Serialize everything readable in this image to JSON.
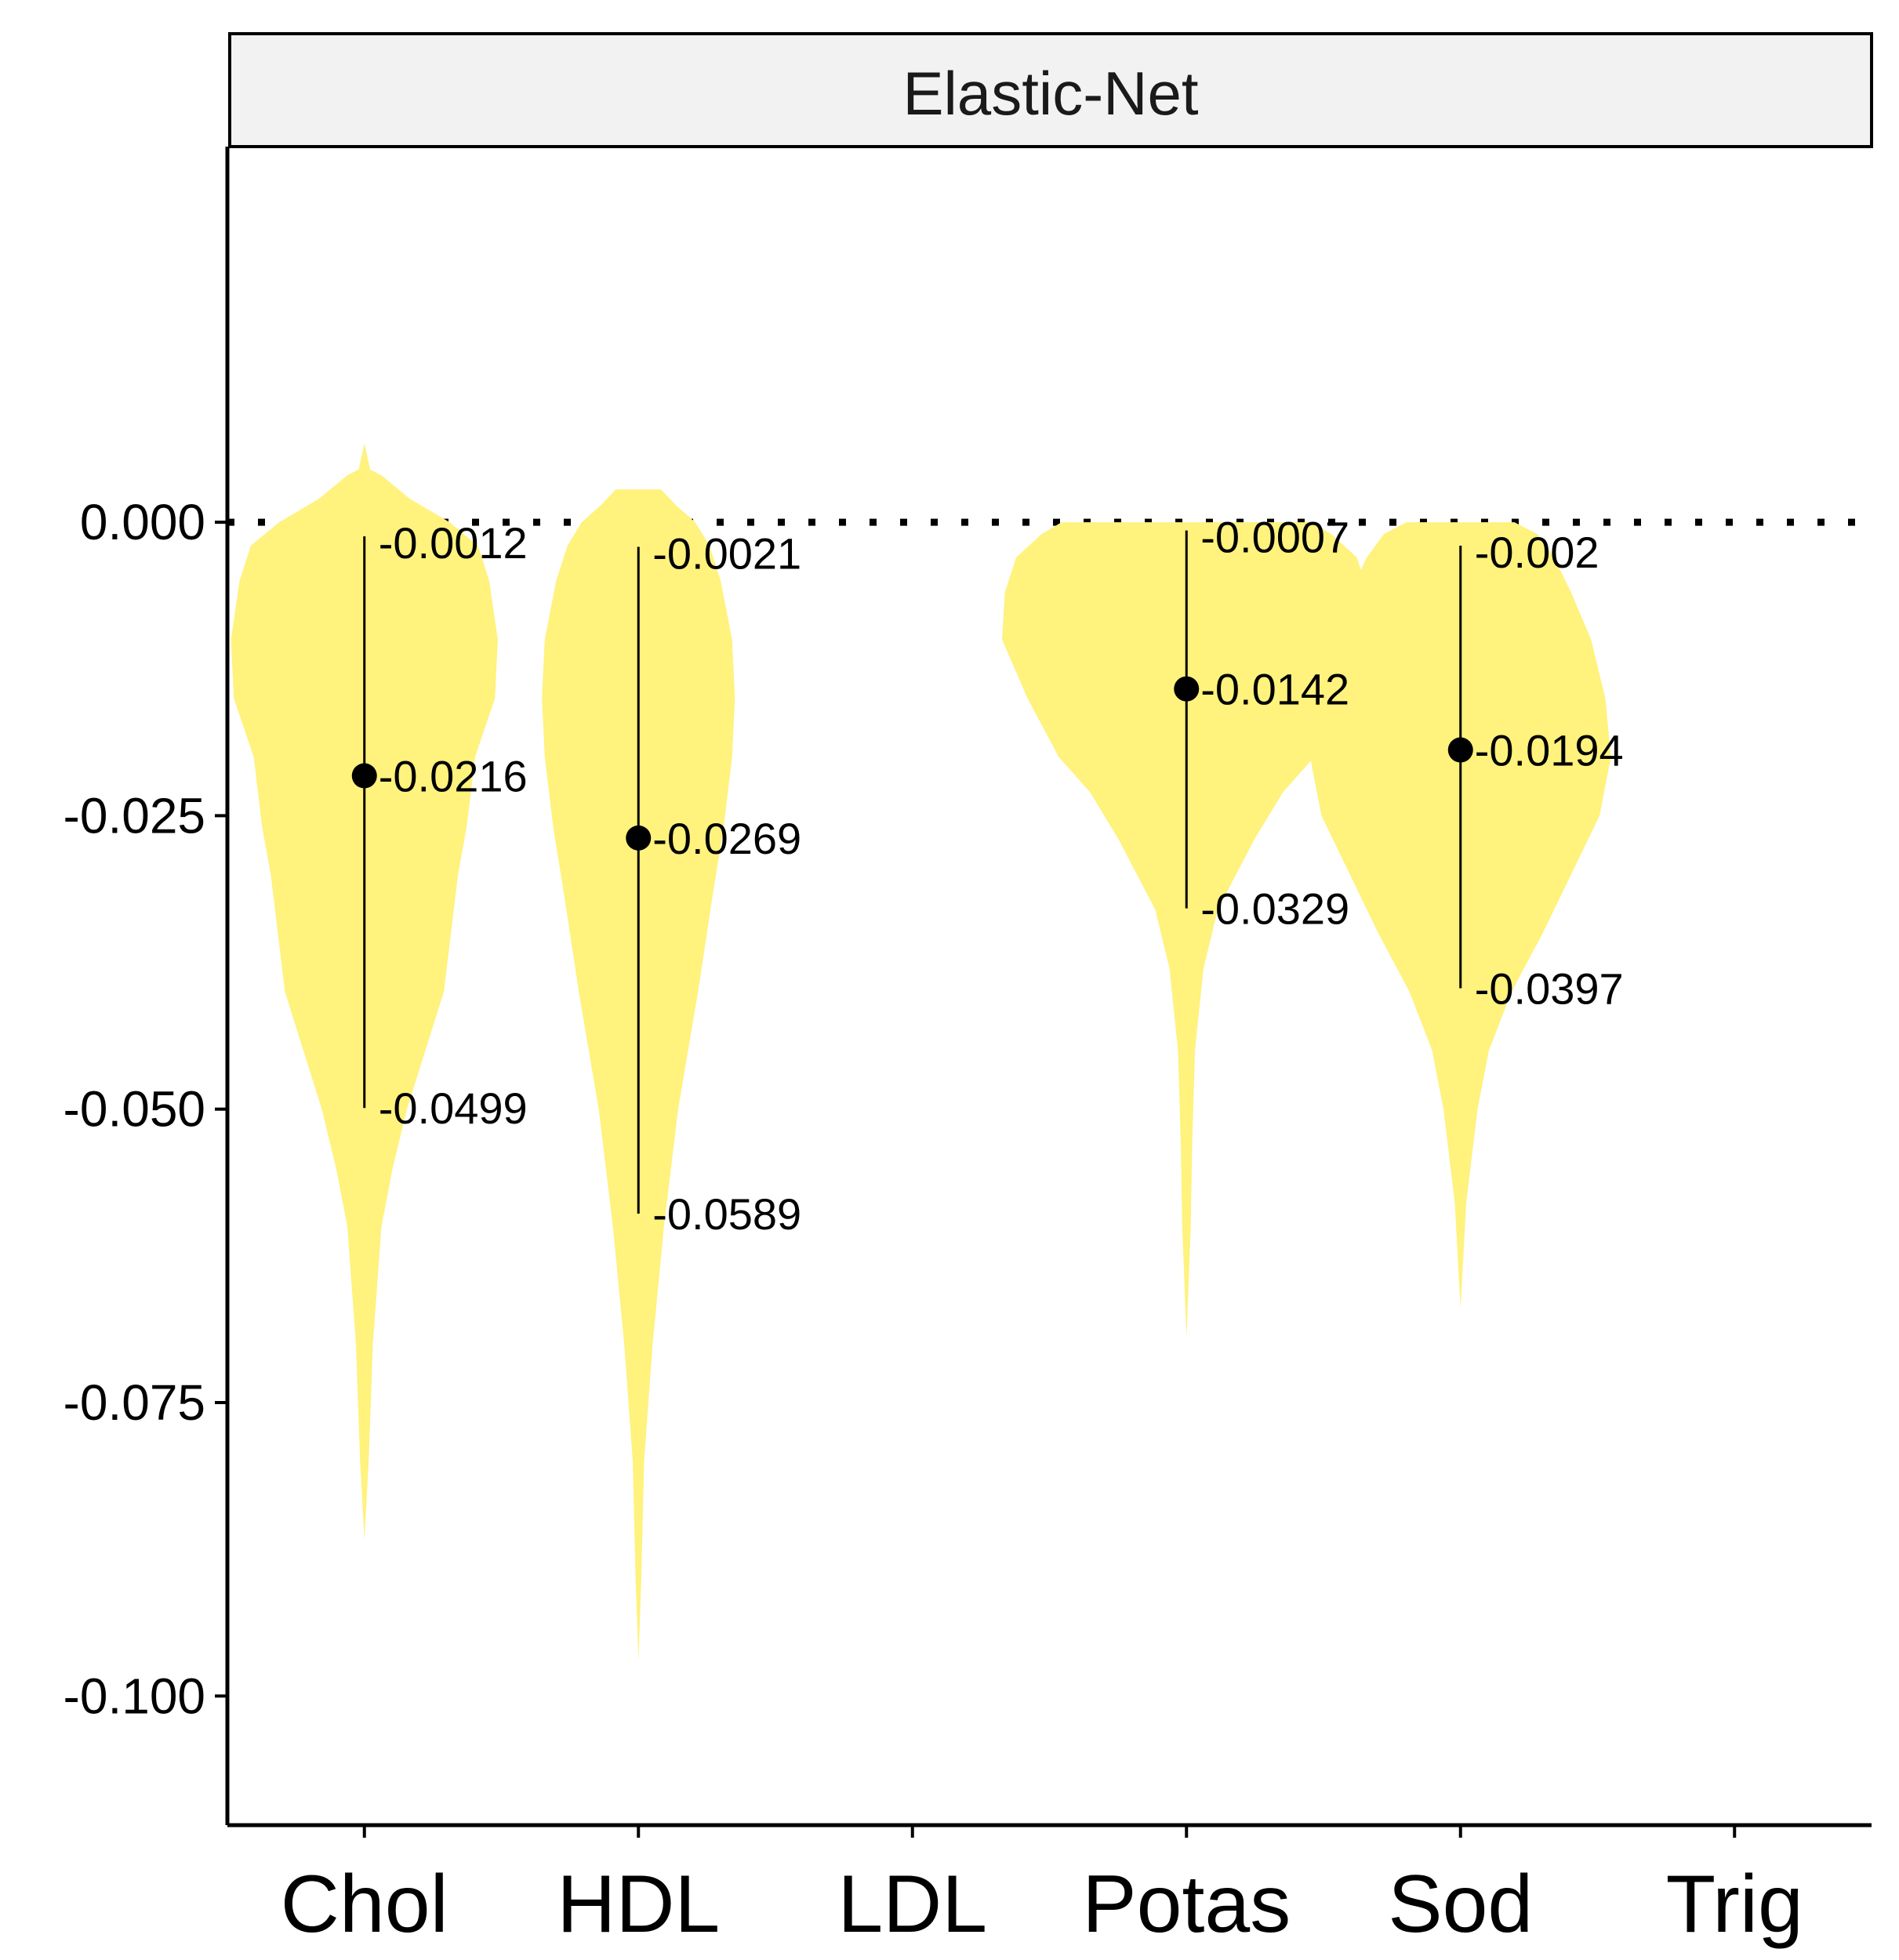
{
  "chart_data": {
    "type": "violin",
    "facet_label": "Elastic-Net",
    "categories": [
      "Chol",
      "HDL",
      "LDL",
      "Potas",
      "Sod",
      "Trig"
    ],
    "ylim": [
      -0.111,
      0.032
    ],
    "yticks": [
      0.0,
      -0.025,
      -0.05,
      -0.075,
      -0.1
    ],
    "ytick_labels": [
      "0.000",
      "-0.025",
      "-0.050",
      "-0.075",
      "-0.100"
    ],
    "reference_line": {
      "y": 0.0,
      "style": "dotted"
    },
    "colors": {
      "violin": "#FFF27D",
      "point": "#000000",
      "facet_strip": "#F2F2F2"
    },
    "series": [
      {
        "category": "Chol",
        "median": -0.0216,
        "lower": -0.0499,
        "upper": -0.0012,
        "labels": {
          "median": "-0.0216",
          "lower": "-0.0499",
          "upper": "-0.0012"
        },
        "violin": [
          [
            0.0067,
            0.0
          ],
          [
            0.0045,
            0.002
          ],
          [
            0.004,
            0.006
          ],
          [
            0.002,
            0.016
          ],
          [
            0.0,
            0.03
          ],
          [
            -0.002,
            0.04
          ],
          [
            -0.005,
            0.044
          ],
          [
            -0.01,
            0.047
          ],
          [
            -0.015,
            0.046
          ],
          [
            -0.02,
            0.039
          ],
          [
            -0.026,
            0.036
          ],
          [
            -0.03,
            0.033
          ],
          [
            -0.04,
            0.028
          ],
          [
            -0.05,
            0.015
          ],
          [
            -0.055,
            0.01
          ],
          [
            -0.06,
            0.006
          ],
          [
            -0.07,
            0.003
          ],
          [
            -0.08,
            0.0015
          ],
          [
            -0.0867,
            0.0
          ]
        ]
      },
      {
        "category": "HDL",
        "median": -0.0269,
        "lower": -0.0589,
        "upper": -0.0021,
        "labels": {
          "median": "-0.0269",
          "lower": "-0.0589",
          "upper": "-0.0021"
        },
        "violin": [
          [
            0.0028,
            0.0
          ],
          [
            0.0028,
            0.008
          ],
          [
            0.0015,
            0.013
          ],
          [
            0.0,
            0.02
          ],
          [
            -0.002,
            0.025
          ],
          [
            -0.005,
            0.029
          ],
          [
            -0.01,
            0.033
          ],
          [
            -0.015,
            0.034
          ],
          [
            -0.02,
            0.033
          ],
          [
            -0.026,
            0.03
          ],
          [
            -0.032,
            0.026
          ],
          [
            -0.04,
            0.021
          ],
          [
            -0.05,
            0.014
          ],
          [
            -0.06,
            0.009
          ],
          [
            -0.07,
            0.005
          ],
          [
            -0.08,
            0.002
          ],
          [
            -0.09,
            0.001
          ],
          [
            -0.097,
            0.0
          ]
        ]
      },
      {
        "category": "Potas",
        "median": -0.0142,
        "lower": -0.0329,
        "upper": -0.0007,
        "labels": {
          "median": "-0.0142",
          "lower": "-0.0329",
          "upper": "-0.0007"
        },
        "violin": [
          [
            0.0,
            0.044
          ],
          [
            -0.001,
            0.051
          ],
          [
            -0.003,
            0.06
          ],
          [
            -0.006,
            0.064
          ],
          [
            -0.01,
            0.065
          ],
          [
            -0.015,
            0.056
          ],
          [
            -0.02,
            0.045
          ],
          [
            -0.023,
            0.034
          ],
          [
            -0.027,
            0.024
          ],
          [
            -0.033,
            0.011
          ],
          [
            -0.038,
            0.006
          ],
          [
            -0.045,
            0.003
          ],
          [
            -0.053,
            0.002
          ],
          [
            -0.06,
            0.0015
          ],
          [
            -0.0695,
            0.0
          ]
        ]
      },
      {
        "category": "Sod",
        "median": -0.0194,
        "lower": -0.0397,
        "upper": -0.002,
        "labels": {
          "median": "-0.0194",
          "lower": "-0.0397",
          "upper": "-0.002"
        },
        "violin": [
          [
            0.0,
            0.019
          ],
          [
            -0.001,
            0.027
          ],
          [
            -0.003,
            0.033
          ],
          [
            -0.006,
            0.039
          ],
          [
            -0.01,
            0.046
          ],
          [
            -0.015,
            0.051
          ],
          [
            -0.02,
            0.053
          ],
          [
            -0.025,
            0.049
          ],
          [
            -0.03,
            0.039
          ],
          [
            -0.035,
            0.029
          ],
          [
            -0.04,
            0.018
          ],
          [
            -0.045,
            0.01
          ],
          [
            -0.05,
            0.006
          ],
          [
            -0.058,
            0.002
          ],
          [
            -0.067,
            0.0
          ]
        ]
      }
    ]
  }
}
